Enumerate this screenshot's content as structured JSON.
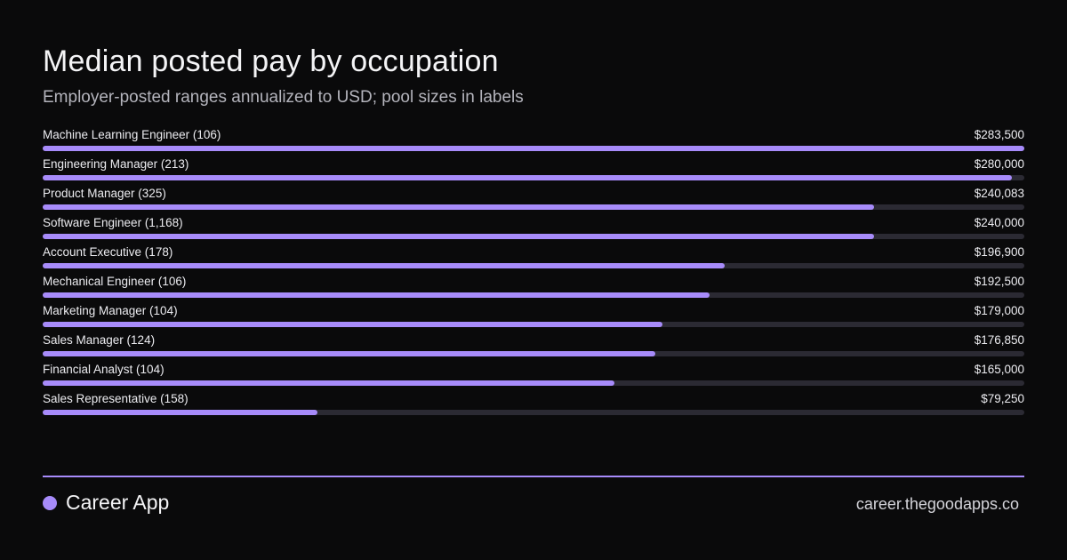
{
  "title": "Median posted pay by occupation",
  "subtitle": "Employer-posted ranges annualized to USD; pool sizes in labels",
  "chart_data": {
    "type": "bar",
    "orientation": "horizontal",
    "title": "Median posted pay by occupation",
    "subtitle": "Employer-posted ranges annualized to USD; pool sizes in labels",
    "categories": [
      "Machine Learning Engineer (106)",
      "Engineering Manager (213)",
      "Product Manager (325)",
      "Software Engineer (1,168)",
      "Account Executive (178)",
      "Mechanical Engineer (106)",
      "Marketing Manager (104)",
      "Sales Manager (124)",
      "Financial Analyst (104)",
      "Sales Representative (158)"
    ],
    "values": [
      283500,
      280000,
      240083,
      240000,
      196900,
      192500,
      179000,
      176850,
      165000,
      79250
    ],
    "value_labels": [
      "$283,500",
      "$280,000",
      "$240,083",
      "$240,000",
      "$196,900",
      "$192,500",
      "$179,000",
      "$176,850",
      "$165,000",
      "$79,250"
    ],
    "xlim": [
      0,
      283500
    ],
    "grid": false,
    "legend": "none"
  },
  "colors": {
    "background": "#0a0a0b",
    "accent": "#a78bfa",
    "track": "#2b2a33"
  },
  "footer": {
    "brand_name": "Career App",
    "url": "career.thegoodapps.co"
  }
}
